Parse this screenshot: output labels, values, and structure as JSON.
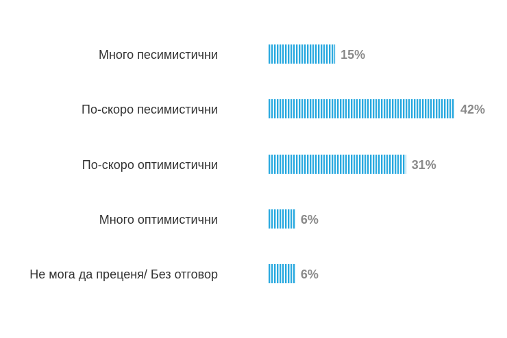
{
  "chart_data": {
    "type": "bar",
    "orientation": "horizontal",
    "categories": [
      "Много песимистични",
      "По-скоро песимистични",
      "По-скоро оптимистични",
      "Много оптимистични",
      "Не мога да преценя/ Без отговор"
    ],
    "values": [
      15,
      42,
      31,
      6,
      6
    ],
    "value_labels": [
      "15%",
      "42%",
      "31%",
      "6%",
      "6%"
    ],
    "unit": "%",
    "xlim": [
      0,
      42
    ],
    "grid": false,
    "legend": "none",
    "bar_style": "vertical-stripes",
    "colors": {
      "bar": "#29a9df",
      "label": "#333333",
      "value_label": "#8a8a8a",
      "background": "#ffffff"
    }
  }
}
